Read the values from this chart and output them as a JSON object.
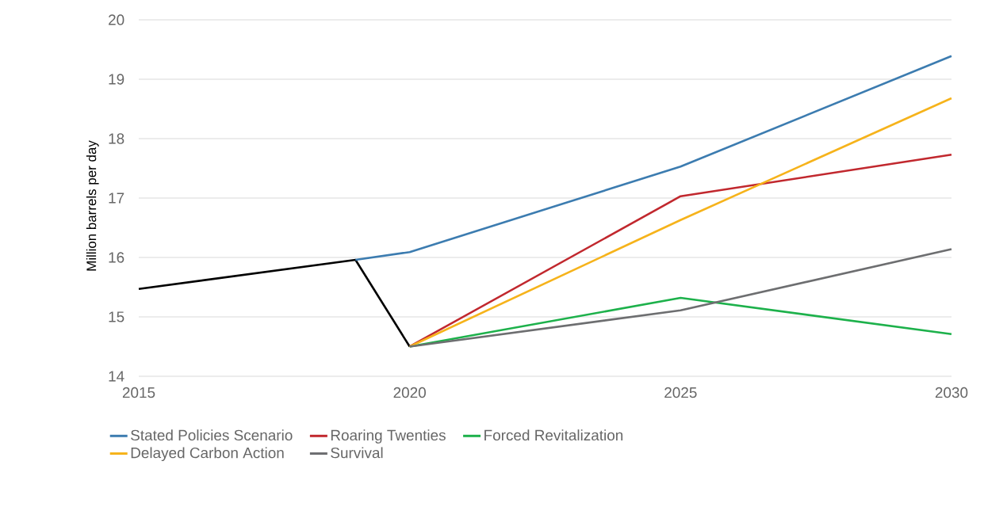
{
  "chart_data": {
    "type": "line",
    "ylabel": "Million barrels per day",
    "series": [
      {
        "color": "#000000",
        "x": [
          2015,
          2019,
          2020
        ],
        "values": [
          15.47,
          15.96,
          14.5
        ]
      },
      {
        "name": "Stated Policies Scenario",
        "color": "#3c7cb0",
        "x": [
          2019,
          2020,
          2025,
          2030
        ],
        "values": [
          15.96,
          16.09,
          17.53,
          19.39
        ]
      },
      {
        "name": "Roaring Twenties",
        "color": "#c1282e",
        "x": [
          2020,
          2025,
          2030
        ],
        "values": [
          14.5,
          17.03,
          17.73
        ]
      },
      {
        "name": "Forced Revitalization",
        "color": "#1db14b",
        "x": [
          2020,
          2025,
          2030
        ],
        "values": [
          14.5,
          15.32,
          14.71
        ]
      },
      {
        "name": "Delayed Carbon Action",
        "color": "#f6b31b",
        "x": [
          2020,
          2025,
          2030
        ],
        "values": [
          14.5,
          16.63,
          18.68
        ]
      },
      {
        "name": "Survival",
        "color": "#6d6e70",
        "x": [
          2020,
          2025,
          2030
        ],
        "values": [
          14.5,
          15.11,
          16.14
        ]
      }
    ],
    "xlim": [
      2015,
      2030
    ],
    "ylim": [
      14,
      20
    ],
    "xticks": [
      2015,
      2020,
      2025,
      2030
    ],
    "yticks": [
      14,
      15,
      16,
      17,
      18,
      19,
      20
    ],
    "grid": "y",
    "legend": "bottom"
  }
}
